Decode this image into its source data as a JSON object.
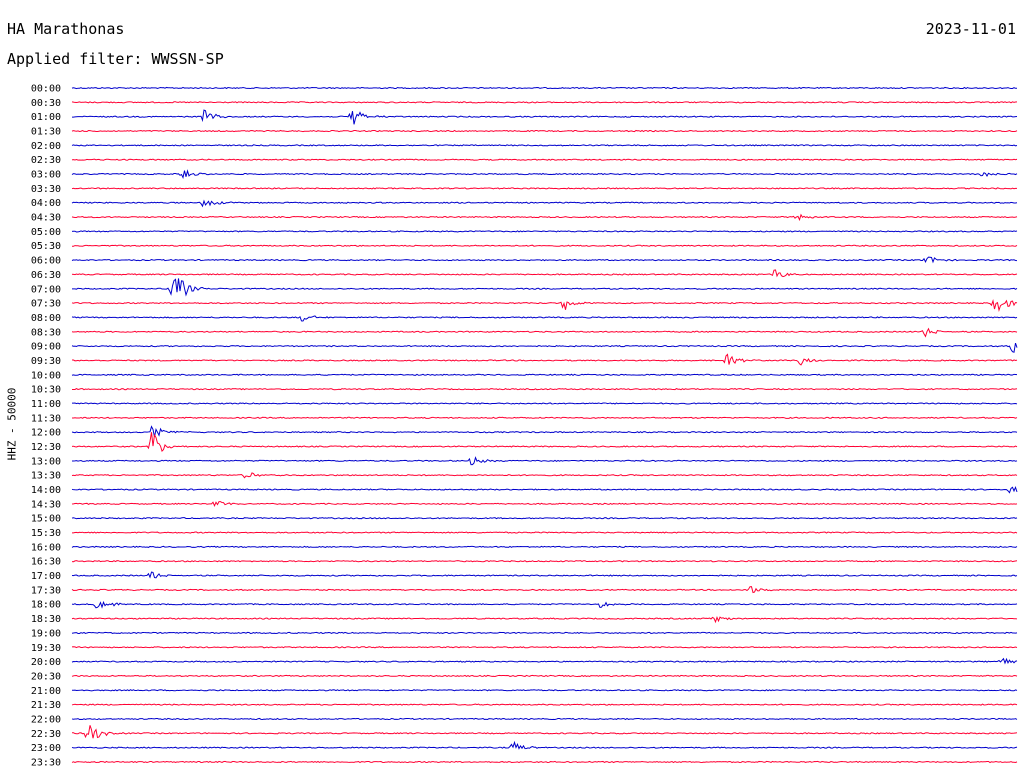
{
  "header": {
    "station": "HA Marathonas",
    "date": "2023-11-01",
    "filter": "Applied filter: WWSSN-SP"
  },
  "colors": {
    "even_trace": "#0000cc",
    "odd_trace": "#ff0033",
    "label": "#000000"
  },
  "chart_data": {
    "type": "line",
    "title": "HA Marathonas",
    "subtitle": "Applied filter: WWSSN-SP",
    "ylabel": "HHZ - 50000",
    "series_kind": "helicorder seismogram, one trace per 30-minute row",
    "rows": [
      "00:00",
      "00:30",
      "01:00",
      "01:30",
      "02:00",
      "02:30",
      "03:00",
      "03:30",
      "04:00",
      "04:30",
      "05:00",
      "05:30",
      "06:00",
      "06:30",
      "07:00",
      "07:30",
      "08:00",
      "08:30",
      "09:00",
      "09:30",
      "10:00",
      "10:30",
      "11:00",
      "11:30",
      "12:00",
      "12:30",
      "13:00",
      "13:30",
      "14:00",
      "14:30",
      "15:00",
      "15:30",
      "16:00",
      "16:30",
      "17:00",
      "17:30",
      "18:00",
      "18:30",
      "19:00",
      "19:30",
      "20:00",
      "20:30",
      "21:00",
      "21:30",
      "22:00",
      "22:30",
      "23:00",
      "23:30"
    ],
    "x_range_minutes": [
      0,
      30
    ],
    "events": [
      {
        "row": "01:00",
        "minute": 4.2,
        "amplitude": 0.6
      },
      {
        "row": "01:00",
        "minute": 8.9,
        "amplitude": 0.8
      },
      {
        "row": "03:00",
        "minute": 3.5,
        "amplitude": 0.35
      },
      {
        "row": "03:00",
        "minute": 28.9,
        "amplitude": 0.3
      },
      {
        "row": "04:00",
        "minute": 4.2,
        "amplitude": 0.45
      },
      {
        "row": "04:30",
        "minute": 23.0,
        "amplitude": 0.35
      },
      {
        "row": "06:00",
        "minute": 27.1,
        "amplitude": 0.4
      },
      {
        "row": "06:30",
        "minute": 22.3,
        "amplitude": 0.5
      },
      {
        "row": "07:00",
        "minute": 3.2,
        "amplitude": 1.8
      },
      {
        "row": "07:30",
        "minute": 15.6,
        "amplitude": 0.6
      },
      {
        "row": "07:30",
        "minute": 29.3,
        "amplitude": 1.1
      },
      {
        "row": "08:00",
        "minute": 7.3,
        "amplitude": 0.35
      },
      {
        "row": "08:30",
        "minute": 27.1,
        "amplitude": 0.4
      },
      {
        "row": "09:00",
        "minute": 29.9,
        "amplitude": 0.9
      },
      {
        "row": "09:30",
        "minute": 20.8,
        "amplitude": 0.5
      },
      {
        "row": "09:30",
        "minute": 23.1,
        "amplitude": 0.4
      },
      {
        "row": "12:00",
        "minute": 2.5,
        "amplitude": 0.6
      },
      {
        "row": "12:30",
        "minute": 2.5,
        "amplitude": 1.2
      },
      {
        "row": "13:00",
        "minute": 12.7,
        "amplitude": 0.35
      },
      {
        "row": "13:30",
        "minute": 5.5,
        "amplitude": 0.3
      },
      {
        "row": "14:00",
        "minute": 29.8,
        "amplitude": 0.3
      },
      {
        "row": "14:30",
        "minute": 4.5,
        "amplitude": 0.35
      },
      {
        "row": "17:00",
        "minute": 2.5,
        "amplitude": 0.35
      },
      {
        "row": "17:30",
        "minute": 21.5,
        "amplitude": 0.35
      },
      {
        "row": "18:00",
        "minute": 0.8,
        "amplitude": 0.5
      },
      {
        "row": "18:00",
        "minute": 16.8,
        "amplitude": 0.3
      },
      {
        "row": "18:30",
        "minute": 20.4,
        "amplitude": 0.3
      },
      {
        "row": "20:00",
        "minute": 29.5,
        "amplitude": 0.35
      },
      {
        "row": "22:30",
        "minute": 0.5,
        "amplitude": 0.9
      },
      {
        "row": "23:00",
        "minute": 14.0,
        "amplitude": 0.5
      }
    ]
  }
}
